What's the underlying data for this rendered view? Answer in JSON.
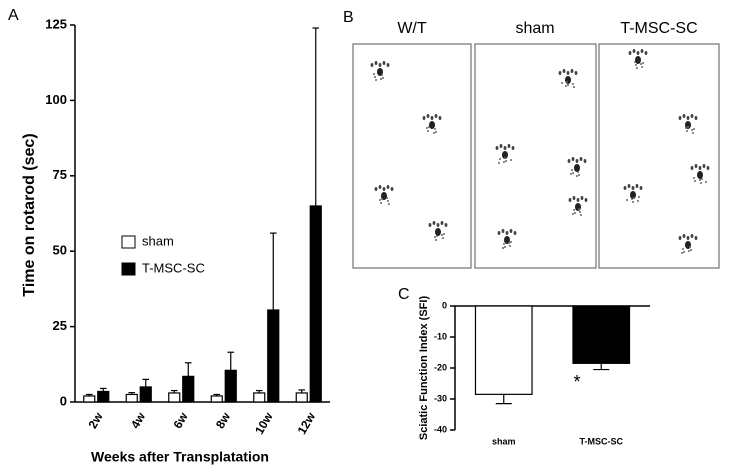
{
  "chart_data": [
    {
      "type": "bar",
      "panel_label": "A",
      "ylabel": "Time on rotarod (sec)",
      "xlabel": "Weeks after Transplatation",
      "categories": [
        "2w",
        "4w",
        "6w",
        "8w",
        "10w",
        "12w"
      ],
      "series": [
        {
          "name": "sham",
          "color": "#ffffff",
          "values": [
            2,
            2.5,
            3,
            2,
            3,
            3
          ],
          "errors": [
            0.5,
            0.6,
            0.8,
            0.5,
            0.8,
            1
          ]
        },
        {
          "name": "T-MSC-SC",
          "color": "#000000",
          "values": [
            3.5,
            5,
            8.5,
            10.5,
            30.5,
            65
          ],
          "errors": [
            1,
            2.5,
            4.5,
            6,
            25.5,
            59
          ]
        }
      ],
      "ylim": [
        0,
        125
      ],
      "yticks": [
        0,
        25,
        50,
        75,
        100,
        125
      ],
      "legend": "center-left"
    },
    {
      "type": "bar",
      "panel_label": "C",
      "ylabel": "Sciatic Function Index (SFI)",
      "categories": [
        "sham",
        "T-MSC-SC"
      ],
      "values": [
        -28.5,
        -18.5
      ],
      "errors": [
        3,
        2
      ],
      "colors": [
        "#ffffff",
        "#000000"
      ],
      "ylim": [
        -40,
        0
      ],
      "yticks": [
        -40,
        -30,
        -20,
        -10,
        0
      ],
      "annotation": "*"
    }
  ],
  "panel_b": {
    "label": "B",
    "titles": [
      "W/T",
      "sham",
      "T-MSC-SC"
    ]
  }
}
